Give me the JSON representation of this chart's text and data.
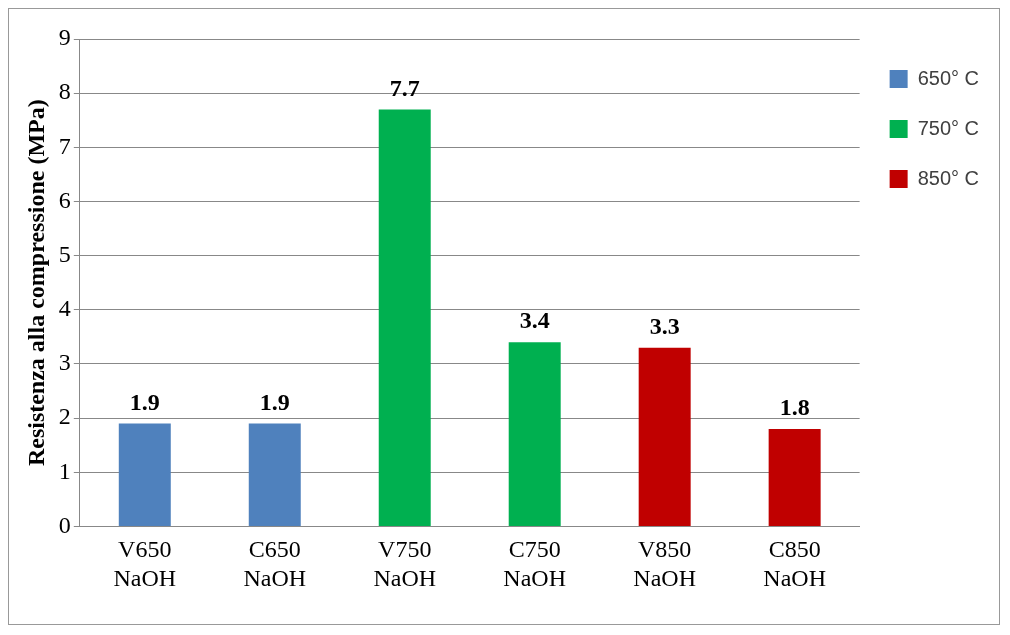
{
  "chart_data": {
    "type": "bar",
    "ylabel": "Resistenza alla compressione (MPa)",
    "categories": [
      "V650\nNaOH",
      "C650\nNaOH",
      "V750\nNaOH",
      "C750\nNaOH",
      "V850\nNaOH",
      "C850\nNaOH"
    ],
    "series": [
      {
        "name": "650° C",
        "color": "#4f81bd",
        "values": [
          1.9,
          1.9,
          null,
          null,
          null,
          null
        ]
      },
      {
        "name": "750° C",
        "color": "#00b050",
        "values": [
          null,
          null,
          7.7,
          3.4,
          null,
          null
        ]
      },
      {
        "name": "850° C",
        "color": "#c00000",
        "values": [
          null,
          null,
          null,
          null,
          3.3,
          1.8
        ]
      }
    ],
    "ylim": [
      0,
      9
    ],
    "yticks": [
      0,
      1,
      2,
      3,
      4,
      5,
      6,
      7,
      8,
      9
    ],
    "grid": "y",
    "legend": "right",
    "data_labels": true
  }
}
